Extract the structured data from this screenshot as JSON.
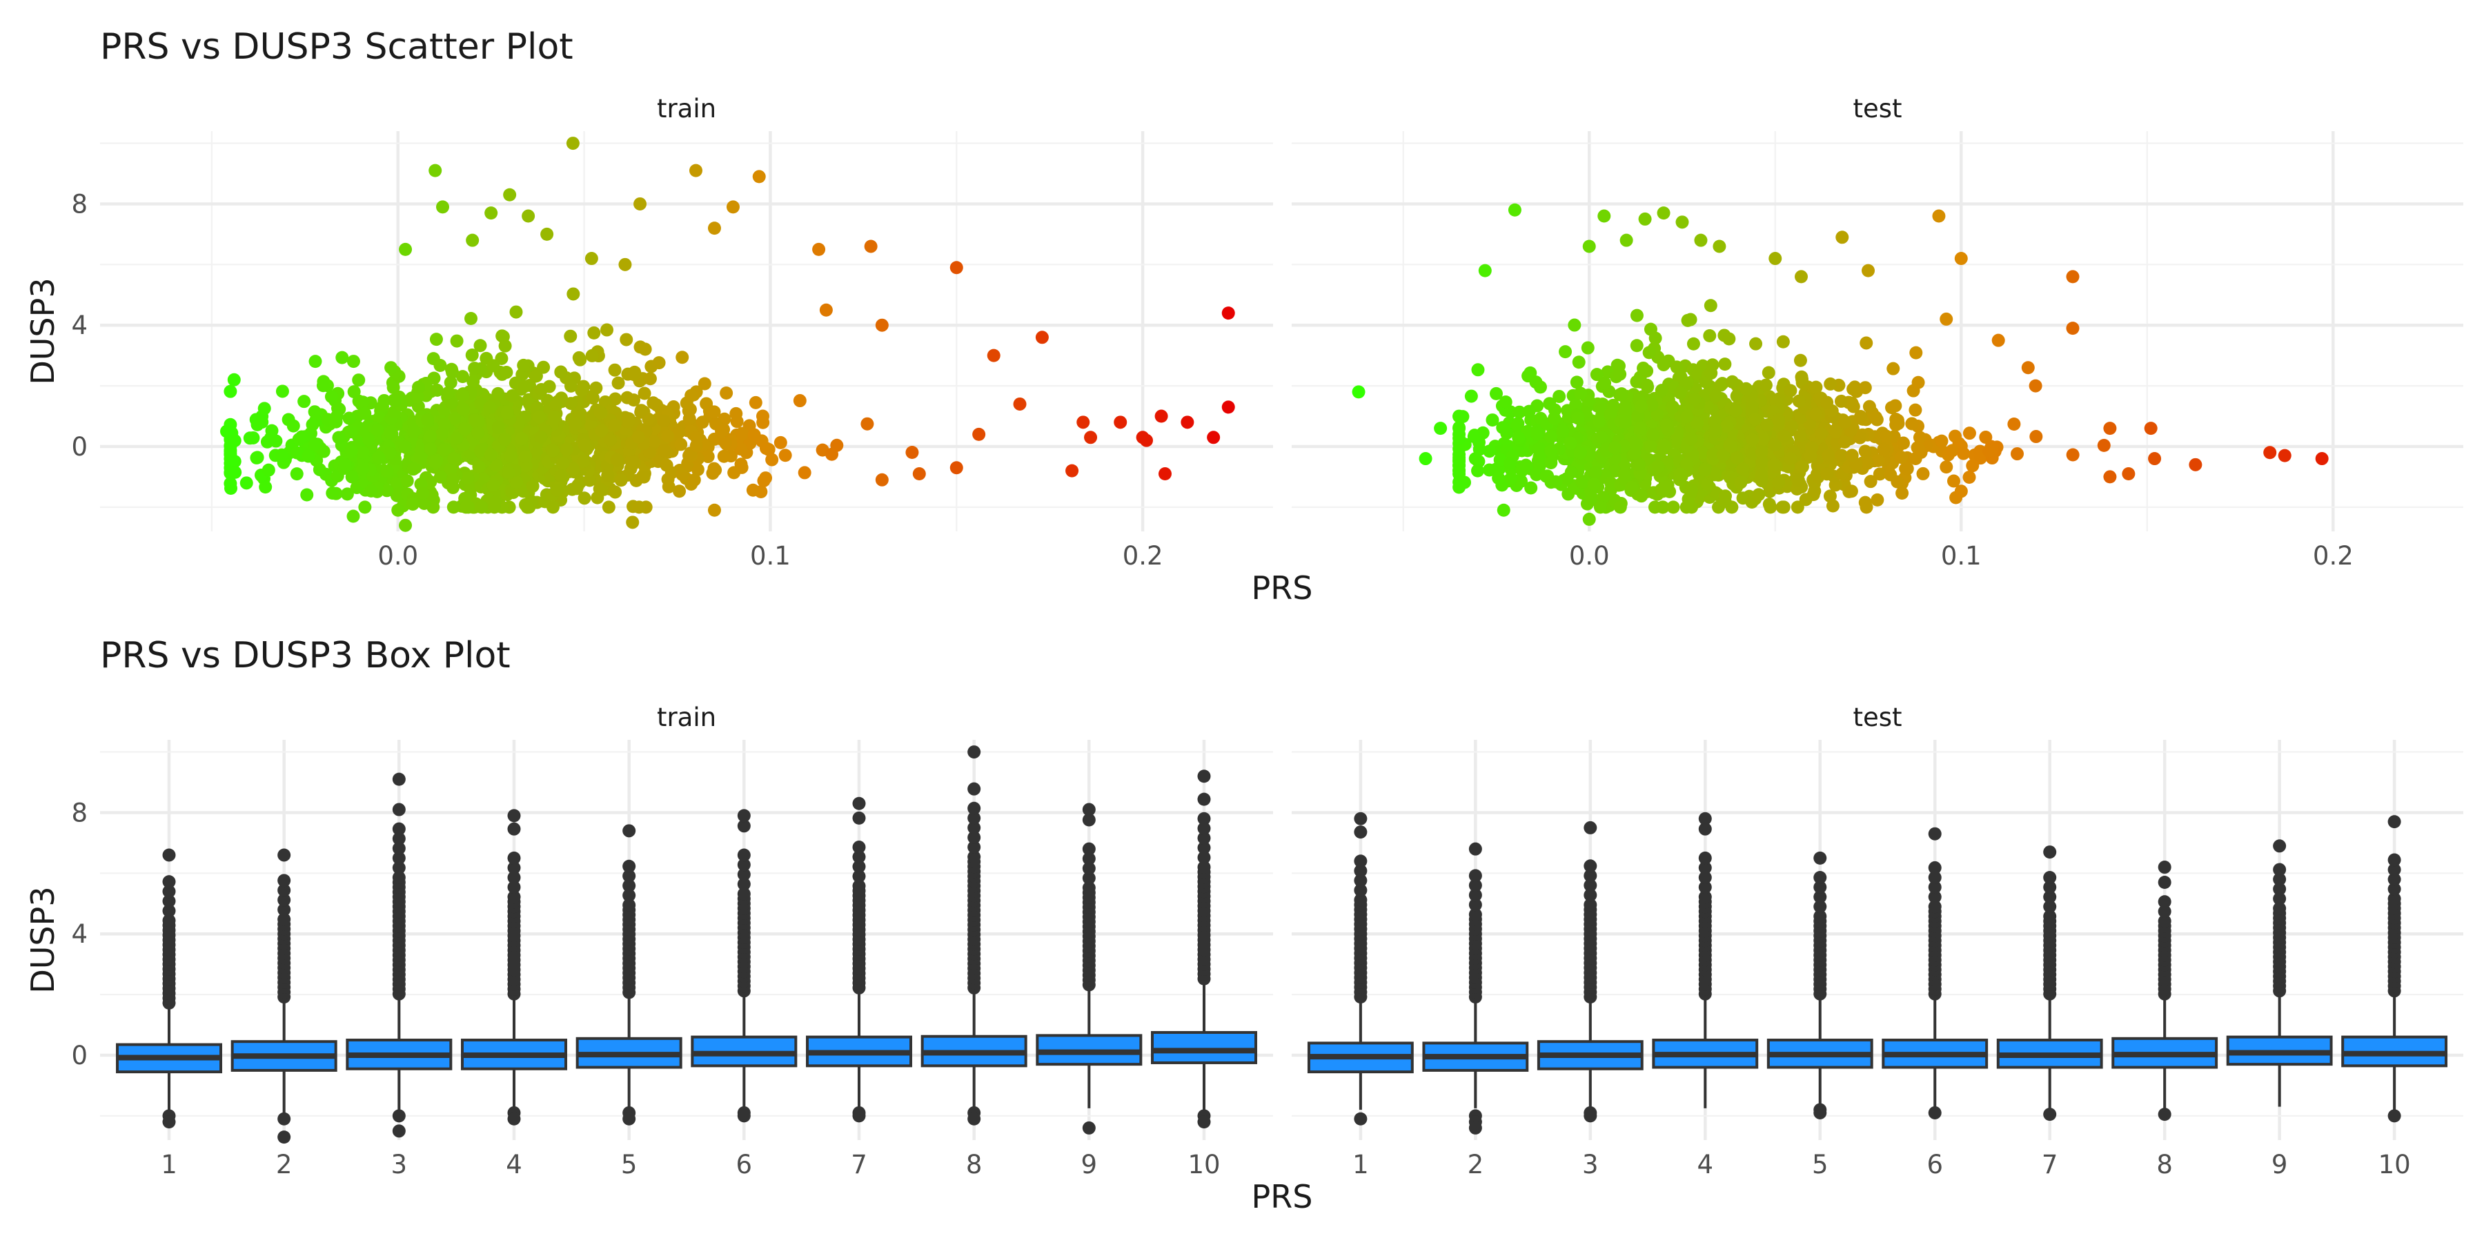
{
  "chart_data": [
    {
      "type": "scatter",
      "title": "PRS vs DUSP3 Scatter Plot",
      "xlabel": "PRS",
      "ylabel": "DUSP3",
      "ylim": [
        -2.8,
        10.4
      ],
      "yticks": [
        0,
        4,
        8
      ],
      "color_scale": {
        "low": "#33ff00",
        "mid": "#dd8800",
        "high": "#e60000"
      },
      "panels": [
        {
          "label": "train",
          "xlim": [
            -0.08,
            0.235
          ],
          "xticks": [
            0.0,
            0.1,
            0.2
          ],
          "xtick_labels": [
            "0.0",
            "0.1",
            "0.2"
          ],
          "points": [
            [
              -0.044,
              2.2
            ],
            [
              -0.046,
              0.5
            ],
            [
              0.002,
              6.5
            ],
            [
              0.01,
              9.1
            ],
            [
              0.012,
              7.9
            ],
            [
              0.02,
              6.8
            ],
            [
              0.025,
              7.7
            ],
            [
              0.03,
              8.3
            ],
            [
              0.035,
              7.6
            ],
            [
              0.04,
              7.0
            ],
            [
              0.047,
              10.0
            ],
            [
              0.052,
              6.2
            ],
            [
              0.061,
              6.0
            ],
            [
              0.065,
              8.0
            ],
            [
              0.08,
              9.1
            ],
            [
              0.085,
              7.2
            ],
            [
              0.09,
              7.9
            ],
            [
              0.097,
              8.9
            ],
            [
              0.113,
              6.5
            ],
            [
              0.115,
              4.5
            ],
            [
              0.127,
              6.6
            ],
            [
              0.13,
              4.0
            ],
            [
              0.15,
              5.9
            ],
            [
              0.16,
              3.0
            ],
            [
              0.167,
              1.4
            ],
            [
              0.173,
              3.6
            ],
            [
              0.181,
              -0.8
            ],
            [
              0.184,
              0.8
            ],
            [
              0.186,
              0.3
            ],
            [
              0.194,
              0.8
            ],
            [
              0.2,
              0.3
            ],
            [
              0.201,
              0.2
            ],
            [
              0.205,
              1.0
            ],
            [
              0.206,
              -0.9
            ],
            [
              0.212,
              0.8
            ],
            [
              0.219,
              0.3
            ],
            [
              0.223,
              1.3
            ],
            [
              0.223,
              4.4
            ],
            [
              0.004,
              -1.9
            ],
            [
              0.0,
              -2.1
            ],
            [
              -0.012,
              -2.3
            ],
            [
              0.002,
              -2.6
            ],
            [
              0.063,
              -2.5
            ],
            [
              0.085,
              -2.1
            ],
            [
              0.13,
              -1.1
            ],
            [
              0.14,
              -0.9
            ],
            [
              0.15,
              -0.7
            ],
            [
              0.156,
              0.4
            ]
          ],
          "cloud": {
            "center_x": 0.03,
            "x_spread": 0.06,
            "x_range": [
              -0.045,
              0.165
            ],
            "center_y": 0.0,
            "y_range": [
              -2.0,
              5.5
            ]
          }
        },
        {
          "label": "test",
          "xlim": [
            -0.08,
            0.235
          ],
          "xticks": [
            0.0,
            0.1,
            0.2
          ],
          "xtick_labels": [
            "0.0",
            "0.1",
            "0.2"
          ],
          "points": [
            [
              -0.062,
              1.8
            ],
            [
              -0.044,
              -0.4
            ],
            [
              -0.04,
              0.6
            ],
            [
              -0.03,
              -0.8
            ],
            [
              -0.02,
              7.8
            ],
            [
              -0.028,
              5.8
            ],
            [
              0.0,
              6.6
            ],
            [
              0.004,
              7.6
            ],
            [
              0.01,
              6.8
            ],
            [
              0.015,
              7.5
            ],
            [
              0.02,
              7.7
            ],
            [
              0.025,
              7.4
            ],
            [
              0.03,
              6.8
            ],
            [
              0.035,
              6.6
            ],
            [
              0.05,
              6.2
            ],
            [
              0.057,
              5.6
            ],
            [
              0.068,
              6.9
            ],
            [
              0.075,
              5.8
            ],
            [
              0.094,
              7.6
            ],
            [
              0.096,
              4.2
            ],
            [
              0.1,
              6.2
            ],
            [
              0.11,
              3.5
            ],
            [
              0.118,
              2.6
            ],
            [
              0.12,
              2.0
            ],
            [
              0.13,
              5.6
            ],
            [
              0.13,
              3.9
            ],
            [
              0.14,
              0.6
            ],
            [
              0.151,
              0.6
            ],
            [
              0.152,
              -0.4
            ],
            [
              0.163,
              -0.6
            ],
            [
              0.183,
              -0.2
            ],
            [
              0.187,
              -0.3
            ],
            [
              0.197,
              -0.4
            ],
            [
              -0.023,
              -2.1
            ],
            [
              0.0,
              -2.4
            ],
            [
              0.003,
              -2.0
            ],
            [
              0.14,
              -1.0
            ],
            [
              0.145,
              -0.9
            ]
          ],
          "cloud": {
            "center_x": 0.03,
            "x_spread": 0.055,
            "x_range": [
              -0.035,
              0.15
            ],
            "center_y": 0.0,
            "y_range": [
              -2.0,
              5.0
            ]
          }
        }
      ]
    },
    {
      "type": "box",
      "title": "PRS vs DUSP3 Box Plot",
      "xlabel": "PRS",
      "ylabel": "DUSP3",
      "ylim": [
        -2.8,
        10.4
      ],
      "yticks": [
        0,
        4,
        8
      ],
      "categories": [
        "1",
        "2",
        "3",
        "4",
        "5",
        "6",
        "7",
        "8",
        "9",
        "10"
      ],
      "box_color": "#1e90ff",
      "panels": [
        {
          "label": "train",
          "boxes": [
            {
              "q1": -0.55,
              "median": -0.08,
              "q3": 0.35,
              "lower": -1.85,
              "upper": 1.6,
              "low_out": [
                -2.0,
                -2.2
              ],
              "high_out_max": 6.6
            },
            {
              "q1": -0.5,
              "median": -0.03,
              "q3": 0.45,
              "lower": -1.9,
              "upper": 1.8,
              "low_out": [
                -2.1,
                -2.7
              ],
              "high_out_max": 6.6
            },
            {
              "q1": -0.45,
              "median": 0.0,
              "q3": 0.5,
              "lower": -1.8,
              "upper": 1.9,
              "low_out": [
                -2.0,
                -2.5
              ],
              "high_out_max": 9.1
            },
            {
              "q1": -0.45,
              "median": 0.0,
              "q3": 0.5,
              "lower": -1.75,
              "upper": 1.9,
              "low_out": [
                -1.9,
                -2.1
              ],
              "high_out_max": 7.9
            },
            {
              "q1": -0.4,
              "median": 0.02,
              "q3": 0.55,
              "lower": -1.8,
              "upper": 1.95,
              "low_out": [
                -1.9,
                -2.1
              ],
              "high_out_max": 7.4
            },
            {
              "q1": -0.35,
              "median": 0.05,
              "q3": 0.6,
              "lower": -1.8,
              "upper": 2.0,
              "low_out": [
                -1.9,
                -2.0
              ],
              "high_out_max": 7.9
            },
            {
              "q1": -0.35,
              "median": 0.08,
              "q3": 0.6,
              "lower": -1.75,
              "upper": 2.1,
              "low_out": [
                -1.9,
                -2.0
              ],
              "high_out_max": 8.3
            },
            {
              "q1": -0.35,
              "median": 0.08,
              "q3": 0.62,
              "lower": -1.8,
              "upper": 2.1,
              "low_out": [
                -1.9,
                -2.1
              ],
              "high_out_max": 10.0
            },
            {
              "q1": -0.3,
              "median": 0.1,
              "q3": 0.65,
              "lower": -1.75,
              "upper": 2.2,
              "low_out": [
                -2.4
              ],
              "high_out_max": 8.1
            },
            {
              "q1": -0.25,
              "median": 0.15,
              "q3": 0.75,
              "lower": -1.8,
              "upper": 2.4,
              "low_out": [
                -2.0,
                -2.2
              ],
              "high_out_max": 9.2
            }
          ]
        },
        {
          "label": "test",
          "boxes": [
            {
              "q1": -0.55,
              "median": -0.05,
              "q3": 0.4,
              "lower": -1.8,
              "upper": 1.8,
              "low_out": [
                -2.1
              ],
              "high_out_max": 7.8
            },
            {
              "q1": -0.5,
              "median": -0.05,
              "q3": 0.4,
              "lower": -1.75,
              "upper": 1.8,
              "low_out": [
                -2.0,
                -2.2,
                -2.4
              ],
              "high_out_max": 6.8
            },
            {
              "q1": -0.45,
              "median": 0.0,
              "q3": 0.45,
              "lower": -1.75,
              "upper": 1.8,
              "low_out": [
                -1.9,
                -2.0
              ],
              "high_out_max": 7.5
            },
            {
              "q1": -0.4,
              "median": 0.02,
              "q3": 0.5,
              "lower": -1.75,
              "upper": 1.9,
              "low_out": [],
              "high_out_max": 7.8
            },
            {
              "q1": -0.4,
              "median": 0.02,
              "q3": 0.5,
              "lower": -1.7,
              "upper": 1.9,
              "low_out": [
                -1.8,
                -1.9
              ],
              "high_out_max": 6.5
            },
            {
              "q1": -0.4,
              "median": 0.02,
              "q3": 0.5,
              "lower": -1.75,
              "upper": 1.9,
              "low_out": [
                -1.9
              ],
              "high_out_max": 7.3
            },
            {
              "q1": -0.4,
              "median": 0.0,
              "q3": 0.5,
              "lower": -1.8,
              "upper": 1.9,
              "low_out": [
                -1.95
              ],
              "high_out_max": 6.7
            },
            {
              "q1": -0.4,
              "median": 0.02,
              "q3": 0.55,
              "lower": -1.75,
              "upper": 1.9,
              "low_out": [
                -1.95
              ],
              "high_out_max": 6.2
            },
            {
              "q1": -0.3,
              "median": 0.08,
              "q3": 0.6,
              "lower": -1.7,
              "upper": 2.0,
              "low_out": [],
              "high_out_max": 6.9
            },
            {
              "q1": -0.35,
              "median": 0.05,
              "q3": 0.6,
              "lower": -1.8,
              "upper": 2.0,
              "low_out": [
                -2.0
              ],
              "high_out_max": 7.7
            }
          ]
        }
      ]
    }
  ]
}
